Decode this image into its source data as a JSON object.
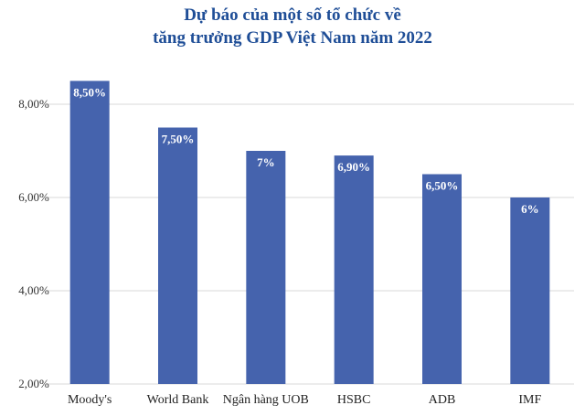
{
  "chart_data": {
    "type": "bar",
    "title_lines": [
      "Dự báo của một số tổ chức về",
      "tăng trưởng GDP Việt Nam năm 2022"
    ],
    "categories": [
      "Moody's",
      "World Bank",
      "Ngân hàng UOB",
      "HSBC",
      "ADB",
      "IMF"
    ],
    "values": [
      8.5,
      7.5,
      7.0,
      6.9,
      6.5,
      6.0
    ],
    "data_labels": [
      "8,50%",
      "7,50%",
      "7%",
      "6,90%",
      "6,50%",
      "6%"
    ],
    "ylim": [
      2,
      9
    ],
    "yticks": [
      2,
      4,
      6,
      8
    ],
    "ytick_labels": [
      "2,00%",
      "4,00%",
      "6,00%",
      "8,00%"
    ],
    "grid": true,
    "legend": "none",
    "colors": {
      "bar": "#4563ad",
      "title": "#1f4e97"
    }
  }
}
